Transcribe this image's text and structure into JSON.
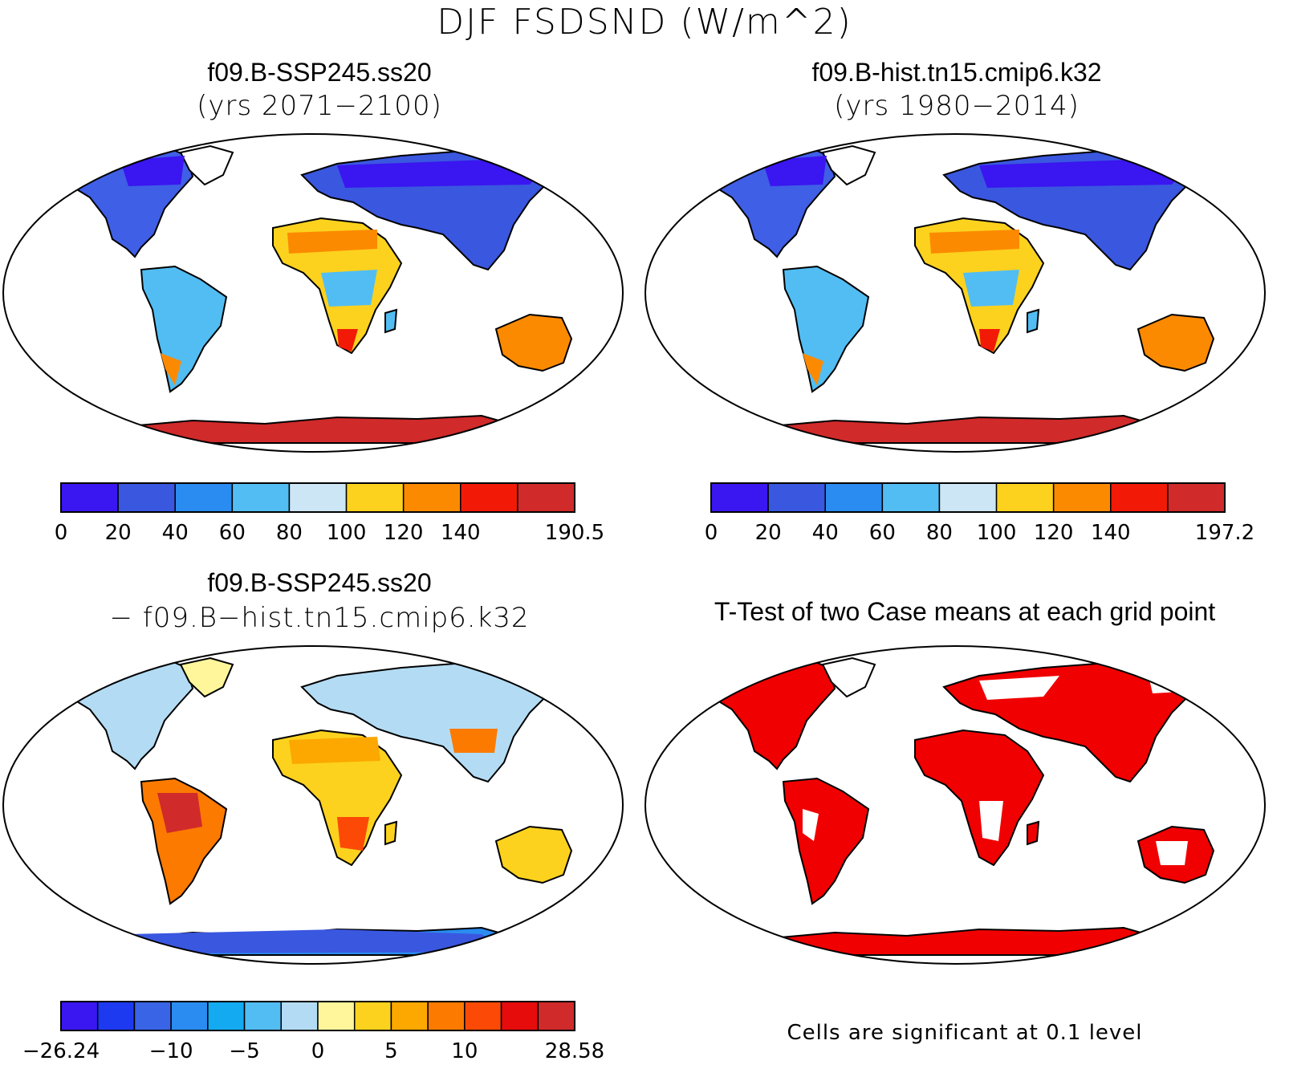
{
  "figure_title": "DJF FSDSND (W/m^2)",
  "panels": [
    {
      "title": "f09.B-SSP245.ss20",
      "subtitle": "(yrs 2071−2100)",
      "colorbar": {
        "colors": [
          "#3a16f0",
          "#3a57e0",
          "#2a8cf0",
          "#52bdf2",
          "#cde6f6",
          "#fcd21e",
          "#fc8a00",
          "#f21a06",
          "#d02a2a"
        ],
        "labels": [
          "0",
          "20",
          "40",
          "60",
          "80",
          "100",
          "120",
          "140",
          "190.5"
        ]
      }
    },
    {
      "title": "f09.B-hist.tn15.cmip6.k32",
      "subtitle": "(yrs 1980−2014)",
      "colorbar": {
        "colors": [
          "#3a16f0",
          "#3a57e0",
          "#2a8cf0",
          "#52bdf2",
          "#cde6f6",
          "#fcd21e",
          "#fc8a00",
          "#f21a06",
          "#d02a2a"
        ],
        "labels": [
          "0",
          "20",
          "40",
          "60",
          "80",
          "100",
          "120",
          "140",
          "197.2"
        ]
      }
    },
    {
      "title": "f09.B-SSP245.ss20",
      "subtitle": "− f09.B−hist.tn15.cmip6.k32",
      "colorbar": {
        "colors": [
          "#3a16f0",
          "#1e3af0",
          "#3a64e6",
          "#2a8cf0",
          "#14aaf2",
          "#52bdf2",
          "#b3dcf4",
          "#fff69c",
          "#fcd21e",
          "#fca800",
          "#fc7a00",
          "#fc4a06",
          "#e60c0c",
          "#d02a2a"
        ],
        "labels": [
          "−26.24",
          "−10",
          "−5",
          "0",
          "5",
          "10",
          "28.58"
        ]
      }
    },
    {
      "title": "T-Test of two Case means at each grid point",
      "footnote": "Cells are significant at 0.1 level",
      "significant_color": "#f00000"
    }
  ]
}
